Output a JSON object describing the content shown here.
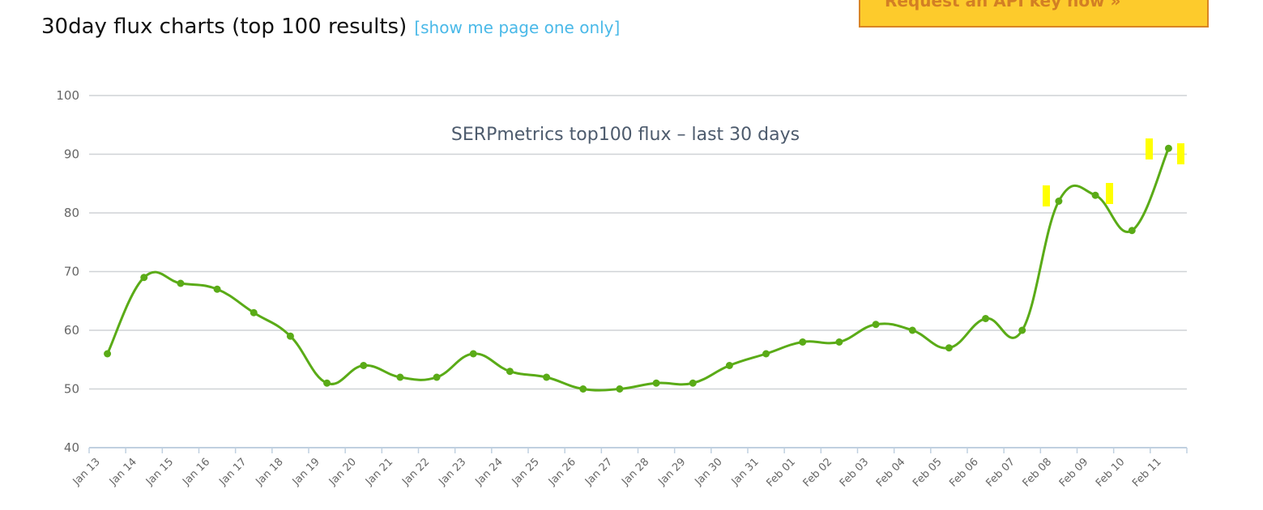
{
  "header": {
    "title": "30day flux charts (top 100 results)",
    "link": "[show me page one only]"
  },
  "api_button": {
    "label": "Request an API key now »"
  },
  "colors": {
    "series": "#5aab17",
    "link": "#4ab9e8",
    "button_bg": "#fdcb2c",
    "button_border": "#d98424",
    "button_text": "#d37f24",
    "marker_highlight": "#ffff00"
  },
  "chart_data": {
    "type": "line",
    "title": "SERPmetrics top100 flux – last 30 days",
    "xlabel": "",
    "ylabel": "",
    "ylim": [
      40,
      100
    ],
    "yticks": [
      40,
      50,
      60,
      70,
      80,
      90,
      100
    ],
    "grid": true,
    "legend": null,
    "categories": [
      "Jan 13",
      "Jan 14",
      "Jan 15",
      "Jan 16",
      "Jan 17",
      "Jan 18",
      "Jan 19",
      "Jan 20",
      "Jan 21",
      "Jan 22",
      "Jan 23",
      "Jan 24",
      "Jan 25",
      "Jan 26",
      "Jan 27",
      "Jan 28",
      "Jan 29",
      "Jan 30",
      "Jan 31",
      "Feb 01",
      "Feb 02",
      "Feb 03",
      "Feb 04",
      "Feb 05",
      "Feb 06",
      "Feb 07",
      "Feb 08",
      "Feb 09",
      "Feb 10",
      "Feb 11"
    ],
    "series": [
      {
        "name": "flux",
        "values": [
          56,
          69,
          68,
          67,
          63,
          59,
          51,
          54,
          52,
          52,
          56,
          53,
          52,
          50,
          50,
          51,
          51,
          54,
          56,
          58,
          58,
          61,
          60,
          57,
          62,
          60,
          82,
          83,
          77,
          91
        ]
      }
    ]
  }
}
